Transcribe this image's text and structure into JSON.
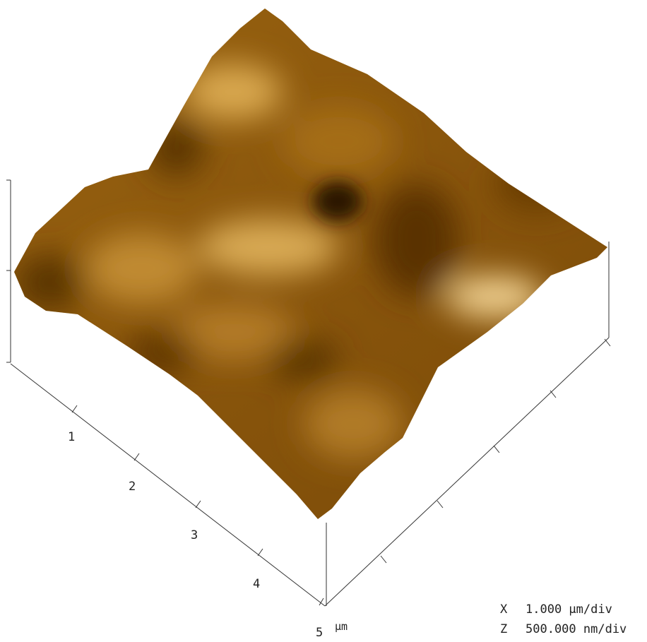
{
  "x_axis": {
    "tick_labels": [
      "1",
      "2",
      "3",
      "4",
      "5"
    ],
    "unit": "µm"
  },
  "legend": {
    "rows": [
      {
        "axis": "X",
        "scale": "1.000 µm/div"
      },
      {
        "axis": "Z",
        "scale": "500.000 nm/div"
      }
    ]
  }
}
